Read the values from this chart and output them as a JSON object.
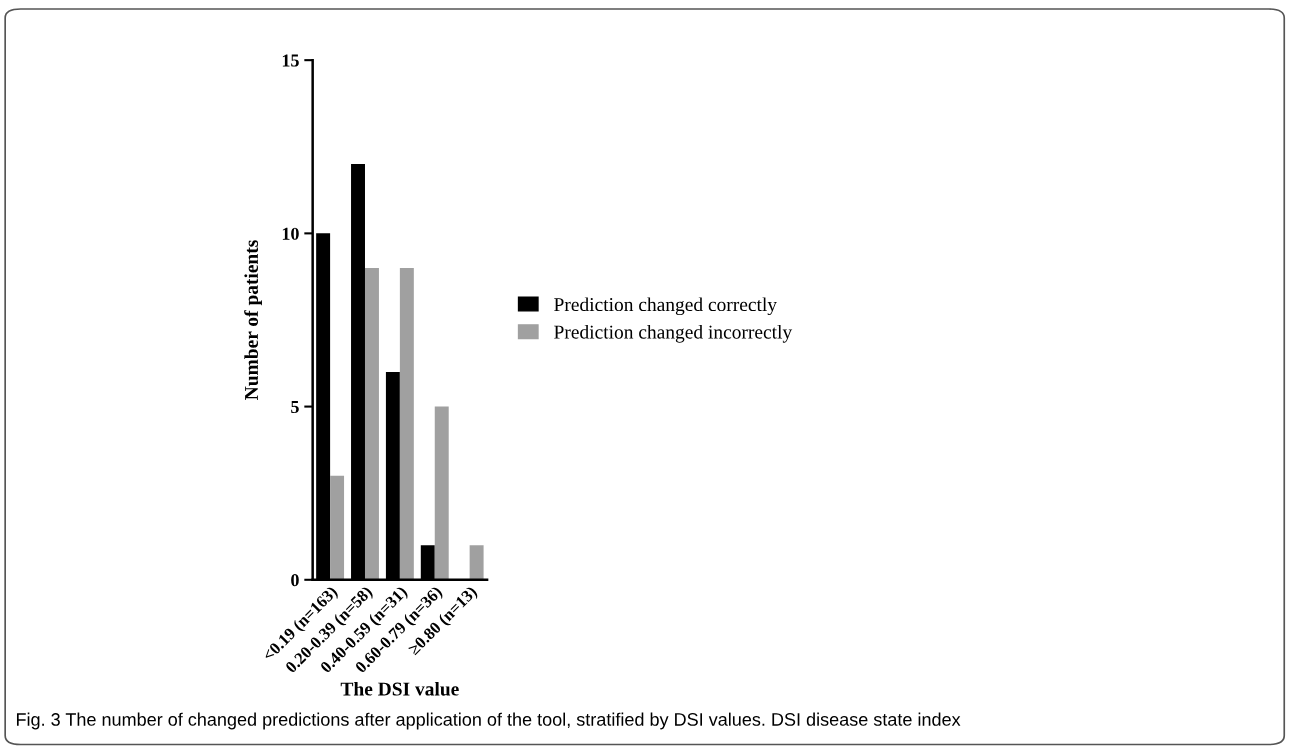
{
  "chart_data": {
    "type": "bar",
    "xlabel": "The DSI value",
    "ylabel": "Number of patients",
    "categories": [
      "<0.19 (n=163)",
      "0.20-0.39 (n=58)",
      "0.40-0.59 (n=31)",
      "0.60-0.79 (n=36)",
      "≥0.80 (n=13)"
    ],
    "series": [
      {
        "name": "Prediction changed correctly",
        "color": "#000000",
        "values": [
          10,
          12,
          6,
          1,
          0
        ]
      },
      {
        "name": "Prediction changed incorrectly",
        "color": "#a0a0a0",
        "values": [
          3,
          9,
          9,
          5,
          1
        ]
      }
    ],
    "ylim": [
      0,
      15
    ],
    "yticks": [
      0,
      5,
      10,
      15
    ],
    "grid": false,
    "legend": "right",
    "annotations": [
      "Fig. 3 The number of changed predictions after application of the tool, stratified by DSI values. DSI disease state index"
    ]
  }
}
